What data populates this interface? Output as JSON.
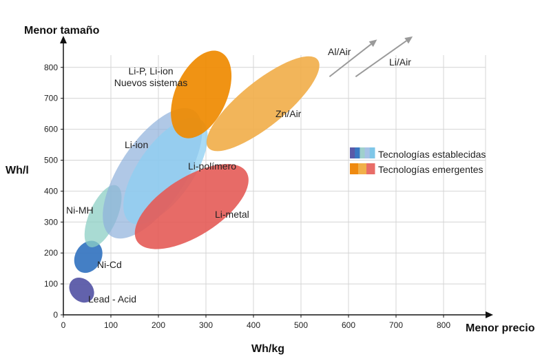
{
  "chart_data": {
    "type": "scatter",
    "xlabel": "Wh/kg",
    "ylabel": "Wh/l",
    "x_direction_label": "Menor precio",
    "y_direction_label": "Menor tamaño",
    "xlim": [
      0,
      900
    ],
    "ylim": [
      0,
      900
    ],
    "x_ticks": [
      0,
      100,
      200,
      300,
      400,
      500,
      600,
      700,
      800
    ],
    "y_ticks": [
      0,
      100,
      200,
      300,
      400,
      500,
      600,
      700,
      800
    ],
    "grid": true,
    "legend": {
      "placement": "right",
      "entries": [
        {
          "label": "Tecnologías establecidas",
          "colors": [
            "#5a5aa8",
            "#3a78c2",
            "#9fd0cc",
            "#a6c2e6",
            "#7fc7e8"
          ]
        },
        {
          "label": "Tecnologías emergentes",
          "colors": [
            "#ef8a10",
            "#f1b04a",
            "#e86d68"
          ]
        }
      ]
    },
    "regions": [
      {
        "label": "Lead - Acid",
        "category": "establecidas",
        "color": "#5a5aa8",
        "opacity": 0.95,
        "range_start": [
          22,
          55
        ],
        "range_end": [
          55,
          105
        ],
        "width": 40
      },
      {
        "label": "Ni-Cd",
        "category": "establecidas",
        "color": "#3a78c2",
        "opacity": 0.95,
        "range_start": [
          35,
          140
        ],
        "range_end": [
          70,
          235
        ],
        "width": 38
      },
      {
        "label": "Ni-MH",
        "category": "establecidas",
        "color": "#8ccfc4",
        "opacity": 0.75,
        "range_start": [
          55,
          220
        ],
        "range_end": [
          112,
          418
        ],
        "width": 40
      },
      {
        "label": "Li-ion",
        "category": "establecidas",
        "color": "#8fb0dc",
        "opacity": 0.7,
        "range_start": [
          100,
          255
        ],
        "range_end": [
          275,
          660
        ],
        "width": 95
      },
      {
        "label": "Li-polímero",
        "category": "establecidas",
        "color": "#8dcff2",
        "opacity": 0.75,
        "range_start": [
          140,
          300
        ],
        "range_end": [
          290,
          630
        ],
        "width": 80
      },
      {
        "label": "Li-metal",
        "category": "emergentes",
        "color": "#e45b57",
        "opacity": 0.9,
        "range_start": [
          155,
          238
        ],
        "range_end": [
          385,
          462
        ],
        "width": 85
      },
      {
        "label": "Zn/Air",
        "category": "emergentes",
        "color": "#f1ad48",
        "opacity": 0.9,
        "range_start": [
          305,
          540
        ],
        "range_end": [
          535,
          825
        ],
        "width": 65
      },
      {
        "label": "Li-P, Li-ion Nuevos sistemas",
        "category": "emergentes",
        "color": "#ef8a00",
        "opacity": 0.92,
        "range_start": [
          250,
          575
        ],
        "range_end": [
          330,
          850
        ],
        "width": 75
      }
    ],
    "annotations": [
      {
        "label": "Al/Air",
        "arrow_from": [
          560,
          770
        ],
        "arrow_to": [
          660,
          890
        ]
      },
      {
        "label": "Li/Air",
        "arrow_from": [
          615,
          770
        ],
        "arrow_to": [
          735,
          900
        ]
      }
    ]
  }
}
